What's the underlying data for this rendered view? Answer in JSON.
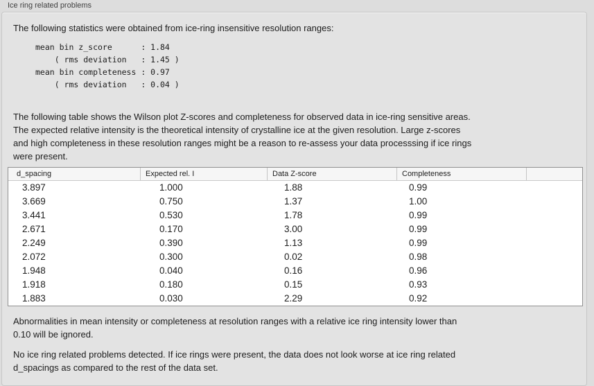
{
  "panel": {
    "title": "Ice ring related problems"
  },
  "colors": {
    "page_bg": "#dddddd",
    "box_bg": "#e3e3e3",
    "box_border": "#c6c6c6",
    "table_border": "#8f8f8f",
    "header_bg": "#f6f6f6"
  },
  "intro": "The following statistics were obtained from ice-ring insensitive resolution ranges:",
  "stats_block": "mean bin z_score      : 1.84\n    ( rms deviation   : 1.45 )\nmean bin completeness : 0.97\n    ( rms deviation   : 0.04 )",
  "description": "The following table shows the Wilson plot Z-scores and completeness for observed data in ice-ring sensitive areas.\nThe expected relative intensity is the theoretical intensity of crystalline ice at the given resolution. Large z-scores\nand high completeness in these resolution ranges might be a reason to re-assess your data processsing if ice rings\nwere present.",
  "table": {
    "columns": [
      "d_spacing",
      "Expected rel. I",
      "Data Z-score",
      "Completeness",
      ""
    ],
    "rows": [
      [
        "3.897",
        "1.000",
        "1.88",
        "0.99",
        ""
      ],
      [
        "3.669",
        "0.750",
        "1.37",
        "1.00",
        ""
      ],
      [
        "3.441",
        "0.530",
        "1.78",
        "0.99",
        ""
      ],
      [
        "2.671",
        "0.170",
        "3.00",
        "0.99",
        ""
      ],
      [
        "2.249",
        "0.390",
        "1.13",
        "0.99",
        ""
      ],
      [
        "2.072",
        "0.300",
        "0.02",
        "0.98",
        ""
      ],
      [
        "1.948",
        "0.040",
        "0.16",
        "0.96",
        ""
      ],
      [
        "1.918",
        "0.180",
        "0.15",
        "0.93",
        ""
      ],
      [
        "1.883",
        "0.030",
        "2.29",
        "0.92",
        ""
      ]
    ]
  },
  "note": "Abnormalities in mean intensity or completeness at resolution ranges with a relative ice ring intensity lower than\n0.10 will be ignored.",
  "conclusion": "No ice ring related problems detected. If ice rings were present, the data does not look worse at ice ring related\nd_spacings as compared to the rest of the data set."
}
